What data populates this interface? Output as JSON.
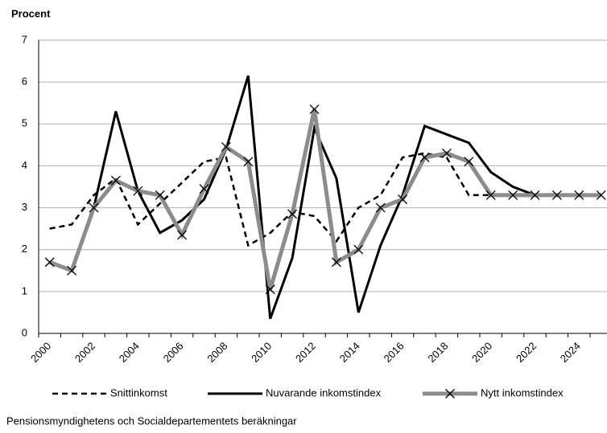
{
  "chart_data": {
    "type": "line",
    "y_label": "Procent",
    "source": "Pensionsmyndighetens och Socialdepartementets beräkningar",
    "categories": [
      "2000",
      null,
      "2002",
      null,
      "2004",
      null,
      "2006",
      null,
      "2008",
      null,
      "2010",
      null,
      "2012",
      null,
      "2014",
      null,
      "2016",
      null,
      "2018",
      null,
      "2020",
      null,
      "2022",
      null,
      "2024",
      null
    ],
    "ylim": [
      0,
      7
    ],
    "yticks": [
      0,
      1,
      2,
      3,
      4,
      5,
      6,
      7
    ],
    "grid": true,
    "legend": "bottom",
    "series": [
      {
        "name": "Snittinkomst",
        "color": "#000000",
        "line_style": "dashed",
        "values": [
          2.5,
          2.6,
          3.3,
          3.7,
          2.6,
          3.1,
          3.6,
          4.1,
          4.2,
          2.1,
          2.4,
          2.9,
          2.8,
          2.2,
          3.0,
          3.3,
          4.2,
          4.3,
          4.2,
          3.3,
          3.3,
          3.3,
          3.3,
          3.3,
          3.3,
          3.3
        ]
      },
      {
        "name": "Nuvarande inkomstindex",
        "color": "#000000",
        "line_style": "solid",
        "values": [
          1.7,
          1.5,
          3.0,
          5.3,
          3.4,
          2.4,
          2.7,
          3.2,
          4.4,
          6.15,
          0.35,
          1.8,
          4.9,
          3.7,
          0.5,
          2.1,
          3.3,
          4.95,
          4.75,
          4.55,
          3.85,
          3.5,
          3.3,
          3.3,
          3.3,
          3.3
        ]
      },
      {
        "name": "Nytt inkomstindex",
        "color": "#8c8c8c",
        "line_style": "solid",
        "marker": "x",
        "values": [
          1.7,
          1.5,
          3.0,
          3.65,
          3.4,
          3.3,
          2.35,
          3.45,
          4.45,
          4.1,
          1.05,
          2.85,
          5.35,
          1.7,
          2.0,
          3.0,
          3.2,
          4.2,
          4.3,
          4.1,
          3.3,
          3.3,
          3.3,
          3.3,
          3.3,
          3.3
        ]
      }
    ]
  }
}
